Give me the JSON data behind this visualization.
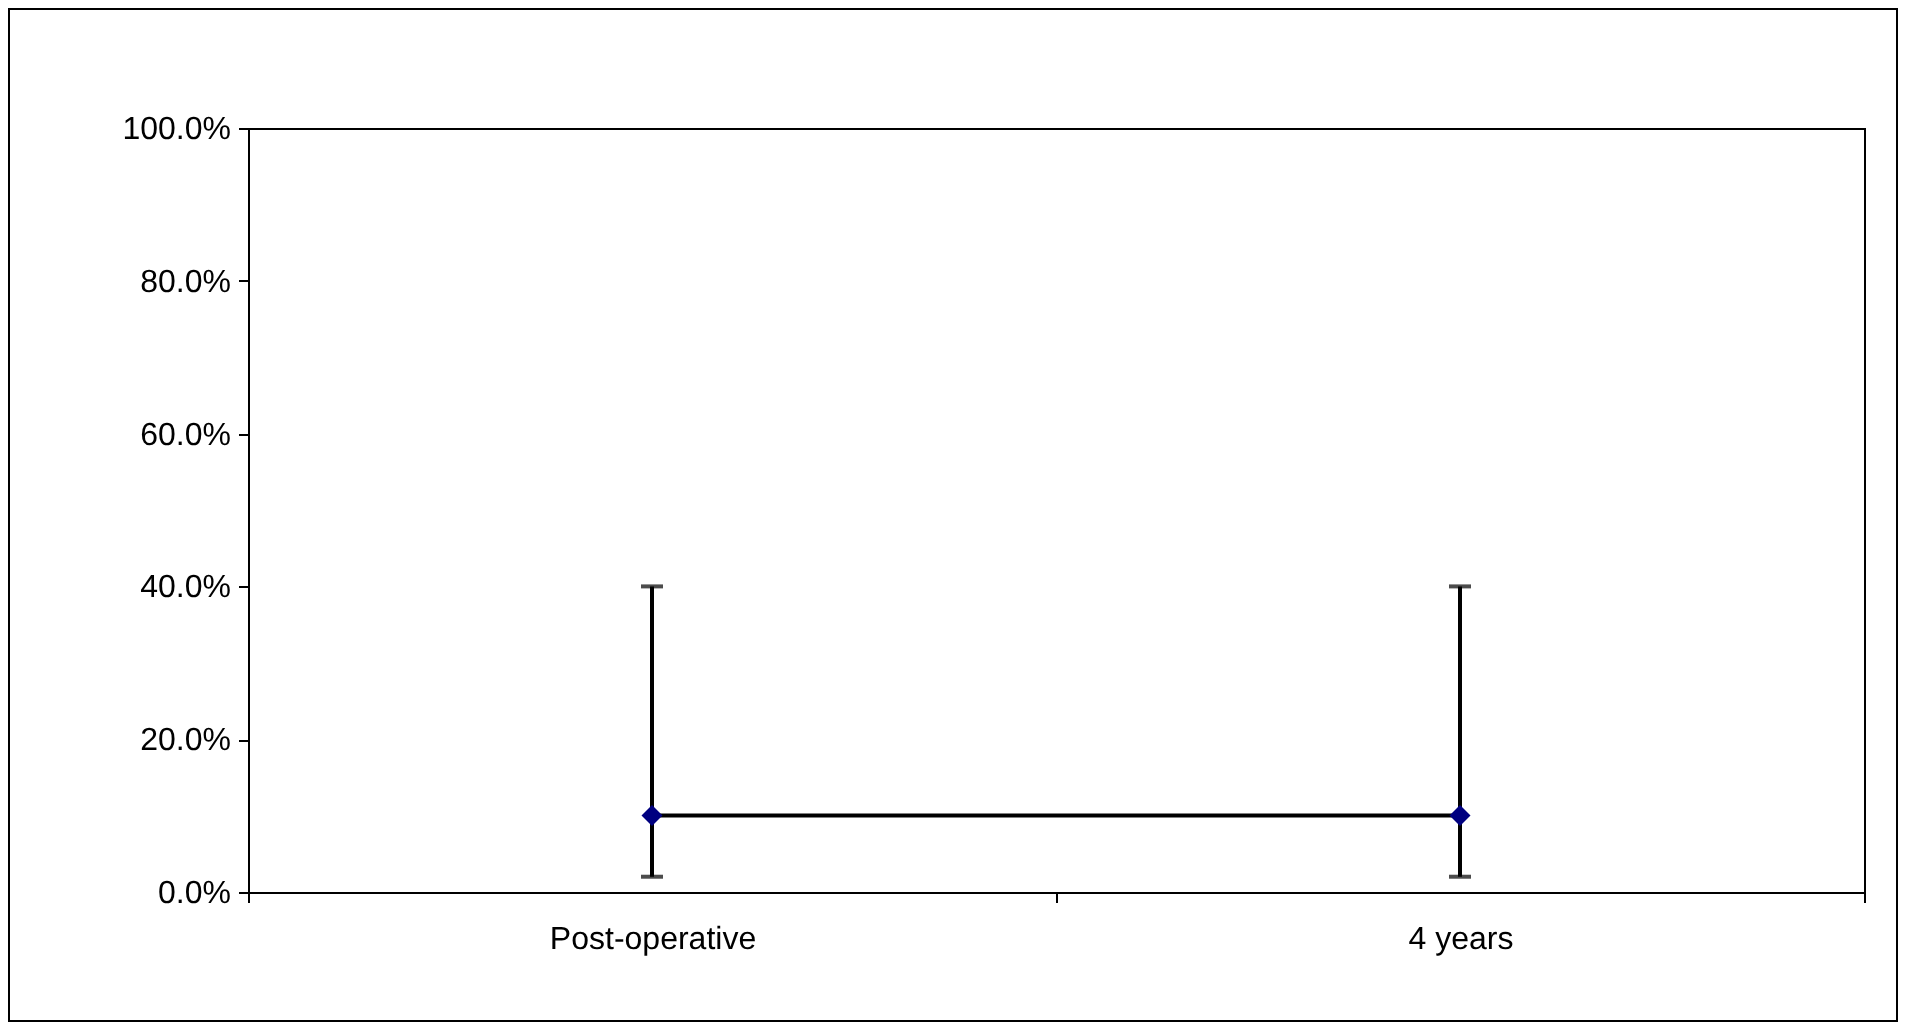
{
  "chart_data": {
    "type": "line",
    "categories": [
      "Post-operative",
      "4 years"
    ],
    "series": [
      {
        "color": "#000080",
        "values": [
          10,
          10
        ],
        "errors": [
          [
            2,
            40
          ],
          [
            2,
            40
          ]
        ]
      }
    ],
    "ylim": [
      0,
      100
    ],
    "yticks": [
      {
        "value": 0,
        "label": "0.0%"
      },
      {
        "value": 20,
        "label": "20.0%"
      },
      {
        "value": 40,
        "label": "40.0%"
      },
      {
        "value": 60,
        "label": "60.0%"
      },
      {
        "value": 80,
        "label": "80.0%"
      },
      {
        "value": 100,
        "label": "100.0%"
      }
    ],
    "grid": false,
    "marker": "diamond",
    "line_style": "solid"
  }
}
